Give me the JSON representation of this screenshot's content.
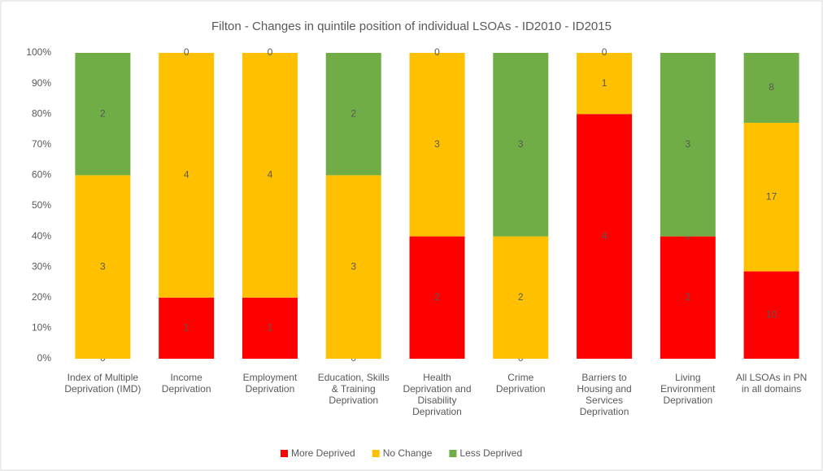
{
  "chart_data": {
    "type": "stacked_bar",
    "title": "Filton - Changes in quintile position of individual LSOAs - ID2010 - ID2015",
    "categories": [
      "Index of Multiple Deprivation (IMD)",
      "Income Deprivation",
      "Employment Deprivation",
      "Education, Skills & Training Deprivation",
      "Health Deprivation and Disability Deprivation",
      "Crime Deprivation",
      "Barriers to Housing and Services Deprivation",
      "Living Environment Deprivation",
      "All LSOAs in PN in all domains"
    ],
    "series": [
      {
        "name": "More Deprived",
        "color": "#ff0000",
        "values": [
          0,
          20,
          20,
          0,
          40,
          0,
          80,
          40,
          28.57
        ],
        "counts": [
          0,
          1,
          1,
          0,
          2,
          0,
          4,
          2,
          10
        ]
      },
      {
        "name": "No Change",
        "color": "#ffc000",
        "values": [
          60,
          80,
          80,
          60,
          60,
          40,
          20,
          0,
          48.57
        ],
        "counts": [
          3,
          4,
          4,
          3,
          3,
          2,
          1,
          0,
          17
        ]
      },
      {
        "name": "Less Deprived",
        "color": "#70ad47",
        "values": [
          40,
          0,
          0,
          40,
          0,
          60,
          0,
          60,
          22.86
        ],
        "counts": [
          2,
          0,
          0,
          2,
          0,
          3,
          0,
          3,
          8
        ]
      }
    ],
    "ylim": [
      0,
      100
    ],
    "yticks": [
      {
        "value": 0,
        "label": "0%"
      },
      {
        "value": 10,
        "label": "10%"
      },
      {
        "value": 20,
        "label": "20%"
      },
      {
        "value": 30,
        "label": "30%"
      },
      {
        "value": 40,
        "label": "40%"
      },
      {
        "value": 50,
        "label": "50%"
      },
      {
        "value": 60,
        "label": "60%"
      },
      {
        "value": 70,
        "label": "70%"
      },
      {
        "value": 80,
        "label": "80%"
      },
      {
        "value": 90,
        "label": "90%"
      },
      {
        "value": 100,
        "label": "100%"
      }
    ],
    "legend": "bottom"
  }
}
